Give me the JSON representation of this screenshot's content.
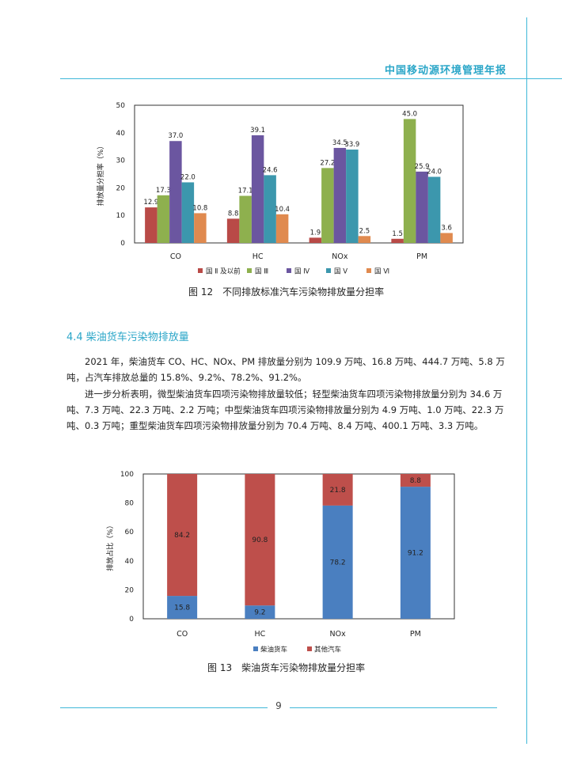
{
  "header": {
    "report_title": "中国移动源环境管理年报"
  },
  "figure12": {
    "caption": "图 12　不同排放标准汽车污染物排放量分担率",
    "chart_data": {
      "type": "bar",
      "categories": [
        "CO",
        "HC",
        "NOx",
        "PM"
      ],
      "ylabel": "排放量分担率（%）",
      "ylim": [
        0,
        50
      ],
      "yticks": [
        0,
        10,
        20,
        30,
        40,
        50
      ],
      "legend_position": "bottom",
      "series": [
        {
          "name": "国 Ⅱ 及以前",
          "color": "#b94a47",
          "values": [
            12.9,
            8.8,
            1.9,
            1.5
          ]
        },
        {
          "name": "国 Ⅲ",
          "color": "#8eb04e",
          "values": [
            17.3,
            17.1,
            27.2,
            45.0
          ]
        },
        {
          "name": "国 Ⅳ",
          "color": "#6b56a0",
          "values": [
            37.0,
            39.1,
            34.5,
            25.9
          ]
        },
        {
          "name": "国 Ⅴ",
          "color": "#3c97ad",
          "values": [
            22.0,
            24.6,
            33.9,
            24.0
          ]
        },
        {
          "name": "国 Ⅵ",
          "color": "#e08a4f",
          "values": [
            10.8,
            10.4,
            2.5,
            3.6
          ]
        }
      ]
    }
  },
  "section": {
    "title": "4.4 柴油货车污染物排放量",
    "paragraphs": [
      "2021 年，柴油货车 CO、HC、NOx、PM 排放量分别为 109.9 万吨、16.8 万吨、444.7 万吨、5.8 万吨，占汽车排放总量的 15.8%、9.2%、78.2%、91.2%。",
      "进一步分析表明，微型柴油货车四项污染物排放量较低；轻型柴油货车四项污染物排放量分别为 34.6 万吨、7.3 万吨、22.3 万吨、2.2 万吨；中型柴油货车四项污染物排放量分别为 4.9 万吨、1.0 万吨、22.3 万吨、0.3 万吨；重型柴油货车四项污染物排放量分别为 70.4 万吨、8.4 万吨、400.1 万吨、3.3 万吨。"
    ]
  },
  "figure13": {
    "caption": "图 13　柴油货车污染物排放量分担率",
    "chart_data": {
      "type": "bar",
      "stacked": true,
      "categories": [
        "CO",
        "HC",
        "NOx",
        "PM"
      ],
      "ylabel": "排放占比（%）",
      "ylim": [
        0,
        100
      ],
      "yticks": [
        0,
        20,
        40,
        60,
        80,
        100
      ],
      "legend_position": "bottom",
      "series": [
        {
          "name": "柴油货车",
          "color": "#4a7fc0",
          "values": [
            15.8,
            9.2,
            78.2,
            91.2
          ]
        },
        {
          "name": "其他汽车",
          "color": "#be4f4b",
          "values": [
            84.2,
            90.8,
            21.8,
            8.8
          ]
        }
      ]
    }
  },
  "footer": {
    "page_number": "9"
  }
}
